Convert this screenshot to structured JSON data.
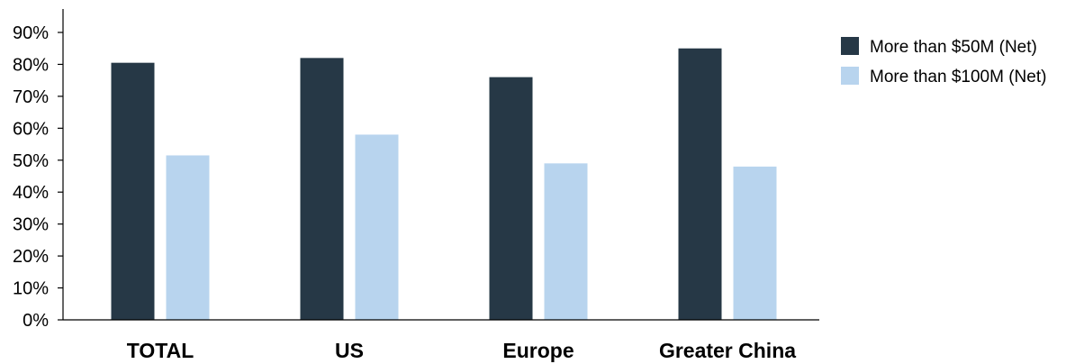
{
  "chart_data": {
    "type": "bar",
    "categories": [
      "TOTAL",
      "US",
      "Europe",
      "Greater China"
    ],
    "series": [
      {
        "name": "More than $50M (Net)",
        "values": [
          80.5,
          82,
          76,
          85
        ],
        "color": "#263846"
      },
      {
        "name": "More than $100M (Net)",
        "values": [
          51.5,
          58,
          49,
          48
        ],
        "color": "#b8d4ee"
      }
    ],
    "ylim": [
      0,
      90
    ],
    "yticks": [
      0,
      10,
      20,
      30,
      40,
      50,
      60,
      70,
      80,
      90
    ],
    "ytick_labels": [
      "0%",
      "10%",
      "20%",
      "30%",
      "40%",
      "50%",
      "60%",
      "70%",
      "80%",
      "90%"
    ],
    "grid": false,
    "legend_position": "right"
  }
}
